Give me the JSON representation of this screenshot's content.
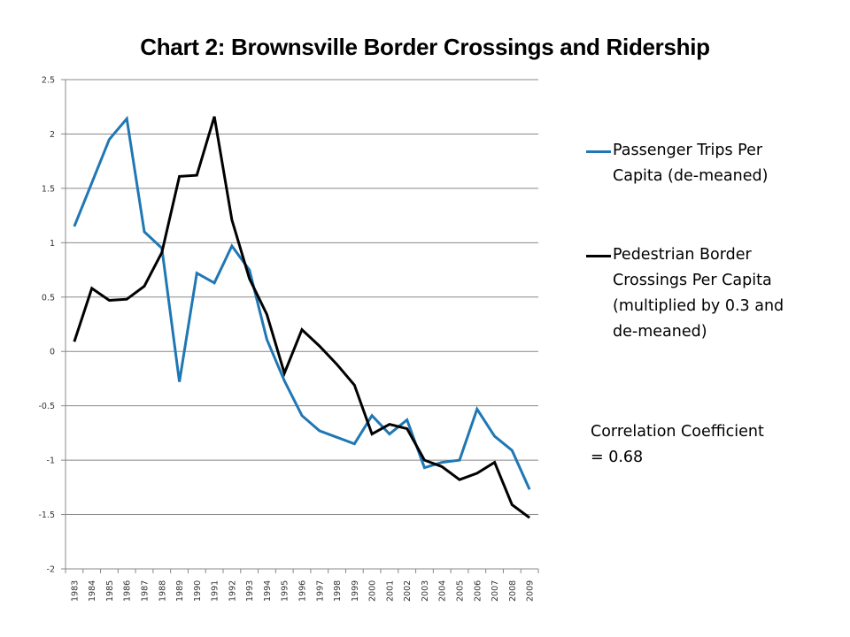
{
  "chart_data": {
    "type": "line",
    "title": "Chart 2: Brownsville Border Crossings and Ridership",
    "xlabel": "",
    "ylabel": "",
    "ylim": [
      -2,
      2.5
    ],
    "yticks": [
      "2.5",
      "2",
      "1.5",
      "1",
      "0.5",
      "0",
      "-0.5",
      "-1",
      "-1.5",
      "-2"
    ],
    "ytick_values": [
      2.5,
      2,
      1.5,
      1,
      0.5,
      0,
      -0.5,
      -1,
      -1.5,
      -2
    ],
    "grid": true,
    "legend_position": "right",
    "categories": [
      "1983",
      "1984",
      "1985",
      "1986",
      "1987",
      "1988",
      "1989",
      "1990",
      "1991",
      "1992",
      "1993",
      "1994",
      "1995",
      "1996",
      "1997",
      "1998",
      "1999",
      "2000",
      "2001",
      "2002",
      "2003",
      "2004",
      "2005",
      "2006",
      "2007",
      "2008",
      "2009"
    ],
    "series": [
      {
        "name": "Passenger Trips Per Capita (de-meaned)",
        "color": "#1f77b4",
        "values": [
          1.15,
          1.55,
          1.95,
          2.14,
          1.1,
          0.95,
          -0.28,
          0.72,
          0.63,
          0.97,
          0.75,
          0.11,
          -0.27,
          -0.59,
          -0.73,
          -0.79,
          -0.85,
          -0.59,
          -0.76,
          -0.63,
          -1.07,
          -1.02,
          -1.0,
          -0.53,
          -0.78,
          -0.91,
          -1.27
        ]
      },
      {
        "name": "Pedestrian Border Crossings Per Capita (multiplied by 0.3 and de-meaned)",
        "color": "#000000",
        "values": [
          0.09,
          0.58,
          0.47,
          0.48,
          0.6,
          0.91,
          1.61,
          1.62,
          2.16,
          1.21,
          0.67,
          0.34,
          -0.2,
          0.2,
          0.05,
          -0.12,
          -0.31,
          -0.76,
          -0.67,
          -0.71,
          -1.0,
          -1.06,
          -1.18,
          -1.12,
          -1.02,
          -1.41,
          -1.53
        ]
      }
    ],
    "annotation": {
      "line1": "Correlation Coefficient",
      "line2": "= 0.68"
    }
  },
  "legend": {
    "items": [
      {
        "line1": "Passenger Trips Per",
        "line2": "Capita (de-meaned)",
        "color": "#1f77b4"
      },
      {
        "line1": "Pedestrian Border",
        "line2": "Crossings Per Capita",
        "line3": "(multiplied by 0.3 and",
        "line4": "de-meaned)",
        "color": "#000000"
      }
    ]
  }
}
